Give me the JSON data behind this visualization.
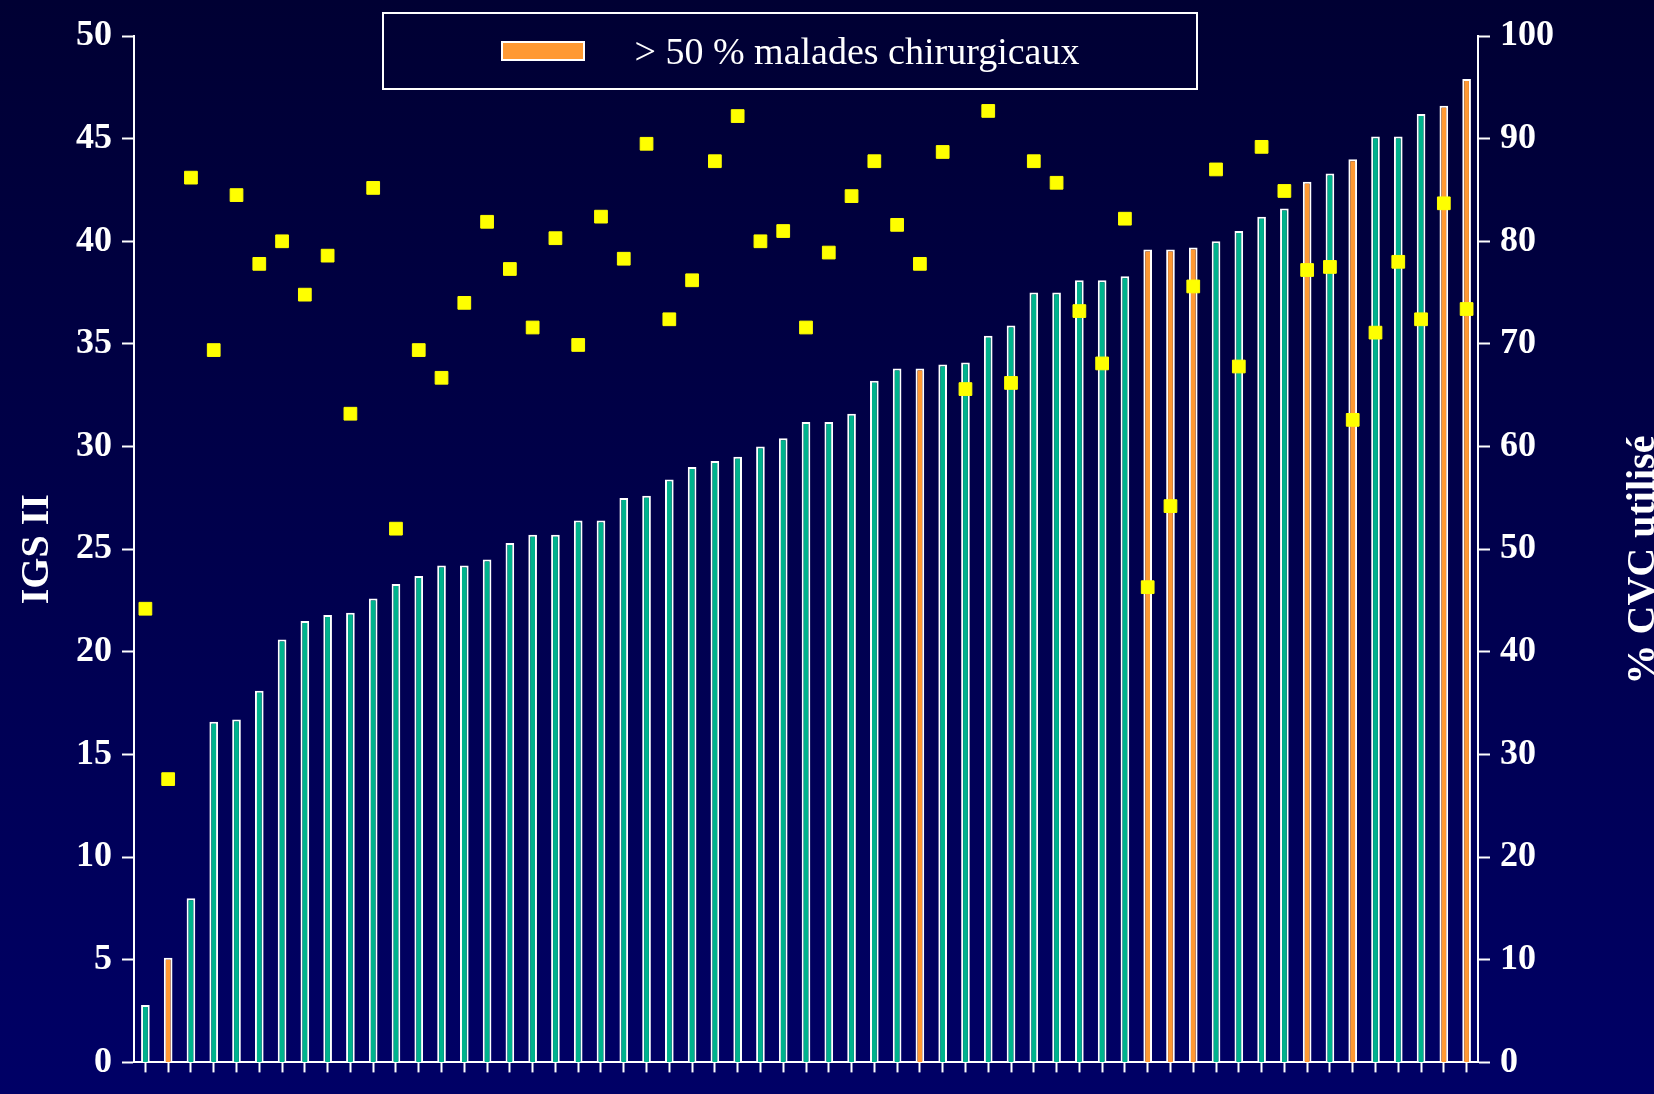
{
  "chart_data": {
    "type": "bar",
    "categories": [
      null,
      null,
      null,
      null,
      null,
      null,
      null,
      null,
      null,
      null,
      null,
      null,
      null,
      null,
      null,
      null,
      null,
      null,
      null,
      null,
      null,
      null,
      null,
      null,
      null,
      null,
      null,
      null,
      null,
      null,
      null,
      null,
      null,
      null,
      null,
      null,
      null,
      null,
      null,
      null,
      null,
      null,
      null,
      null,
      null,
      null,
      null,
      null,
      null,
      null,
      null,
      null,
      null,
      null,
      null,
      null,
      null,
      null,
      null
    ],
    "ylabel": "IGS II",
    "y2label": "% CVC utilisé",
    "legend": "top",
    "ylim": [
      0,
      50
    ],
    "yticks": [
      0,
      5,
      10,
      15,
      20,
      25,
      30,
      35,
      40,
      45,
      50
    ],
    "y2lim": [
      0,
      100
    ],
    "y2ticks": [
      0,
      10,
      20,
      30,
      40,
      50,
      60,
      70,
      80,
      90,
      100
    ],
    "series": [
      {
        "color": "#00b38c",
        "values": [
          2.8,
          null,
          8,
          16.6,
          16.7,
          18.1,
          20.6,
          21.5,
          21.8,
          21.9,
          22.6,
          23.3,
          23.7,
          24.2,
          24.2,
          24.5,
          25.3,
          25.7,
          25.7,
          26.4,
          26.4,
          27.5,
          27.6,
          28.4,
          29.0,
          29.3,
          29.5,
          30.0,
          30.4,
          31.2,
          31.2,
          31.6,
          33.2,
          33.8,
          null,
          34.0,
          34.1,
          35.4,
          35.9,
          37.5,
          37.5,
          38.1,
          38.1,
          38.3,
          null,
          null,
          null,
          40.0,
          40.5,
          41.2,
          41.6,
          null,
          43.3,
          null,
          45.1,
          45.1,
          46.2,
          null,
          null
        ]
      },
      {
        "name": "> 50 % malades chirurgicaux",
        "color": "#ff9933",
        "values": [
          null,
          5.1,
          null,
          null,
          null,
          null,
          null,
          null,
          null,
          null,
          null,
          null,
          null,
          null,
          null,
          null,
          null,
          null,
          null,
          null,
          null,
          null,
          null,
          null,
          null,
          null,
          null,
          null,
          null,
          null,
          null,
          null,
          null,
          null,
          33.8,
          null,
          null,
          null,
          null,
          null,
          null,
          null,
          null,
          null,
          39.6,
          39.6,
          39.7,
          null,
          null,
          null,
          null,
          42.9,
          null,
          44.0,
          null,
          null,
          null,
          46.6,
          47.9
        ]
      },
      {
        "type": "scatter",
        "axis": "y2",
        "color": "#ffff00",
        "marker": "square",
        "values": [
          44.2,
          27.6,
          86.2,
          69.4,
          84.5,
          77.8,
          80.0,
          74.8,
          78.6,
          63.2,
          85.2,
          52.0,
          69.4,
          66.7,
          74.0,
          81.9,
          77.3,
          71.6,
          80.3,
          69.9,
          82.4,
          78.3,
          89.5,
          72.4,
          76.2,
          87.8,
          92.2,
          80.0,
          81.0,
          71.6,
          78.9,
          84.4,
          87.8,
          81.6,
          77.8,
          88.7,
          65.6,
          92.7,
          66.2,
          87.8,
          85.7,
          73.2,
          68.1,
          82.2,
          46.3,
          54.2,
          75.6,
          87.0,
          67.8,
          89.2,
          84.9,
          77.2,
          77.5,
          62.6,
          71.1,
          78.0,
          72.4,
          83.7,
          73.4
        ]
      }
    ]
  }
}
